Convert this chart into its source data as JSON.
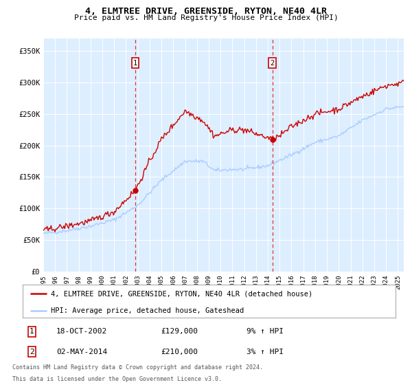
{
  "title": "4, ELMTREE DRIVE, GREENSIDE, RYTON, NE40 4LR",
  "subtitle": "Price paid vs. HM Land Registry's House Price Index (HPI)",
  "hpi_label": "HPI: Average price, detached house, Gateshead",
  "property_label": "4, ELMTREE DRIVE, GREENSIDE, RYTON, NE40 4LR (detached house)",
  "footer1": "Contains HM Land Registry data © Crown copyright and database right 2024.",
  "footer2": "This data is licensed under the Open Government Licence v3.0.",
  "sale1_date": "18-OCT-2002",
  "sale1_price": 129000,
  "sale1_pct": "9% ↑ HPI",
  "sale2_date": "02-MAY-2014",
  "sale2_price": 210000,
  "sale2_pct": "3% ↑ HPI",
  "background_color": "#ffffff",
  "plot_bg_color": "#ddeeff",
  "grid_color": "#ffffff",
  "hpi_color": "#aaccff",
  "property_color": "#cc0000",
  "vline_color": "#dd3333",
  "ylim": [
    0,
    370000
  ],
  "yticks": [
    0,
    50000,
    100000,
    150000,
    200000,
    250000,
    300000,
    350000
  ],
  "ytick_labels": [
    "£0",
    "£50K",
    "£100K",
    "£150K",
    "£200K",
    "£250K",
    "£300K",
    "£350K"
  ]
}
